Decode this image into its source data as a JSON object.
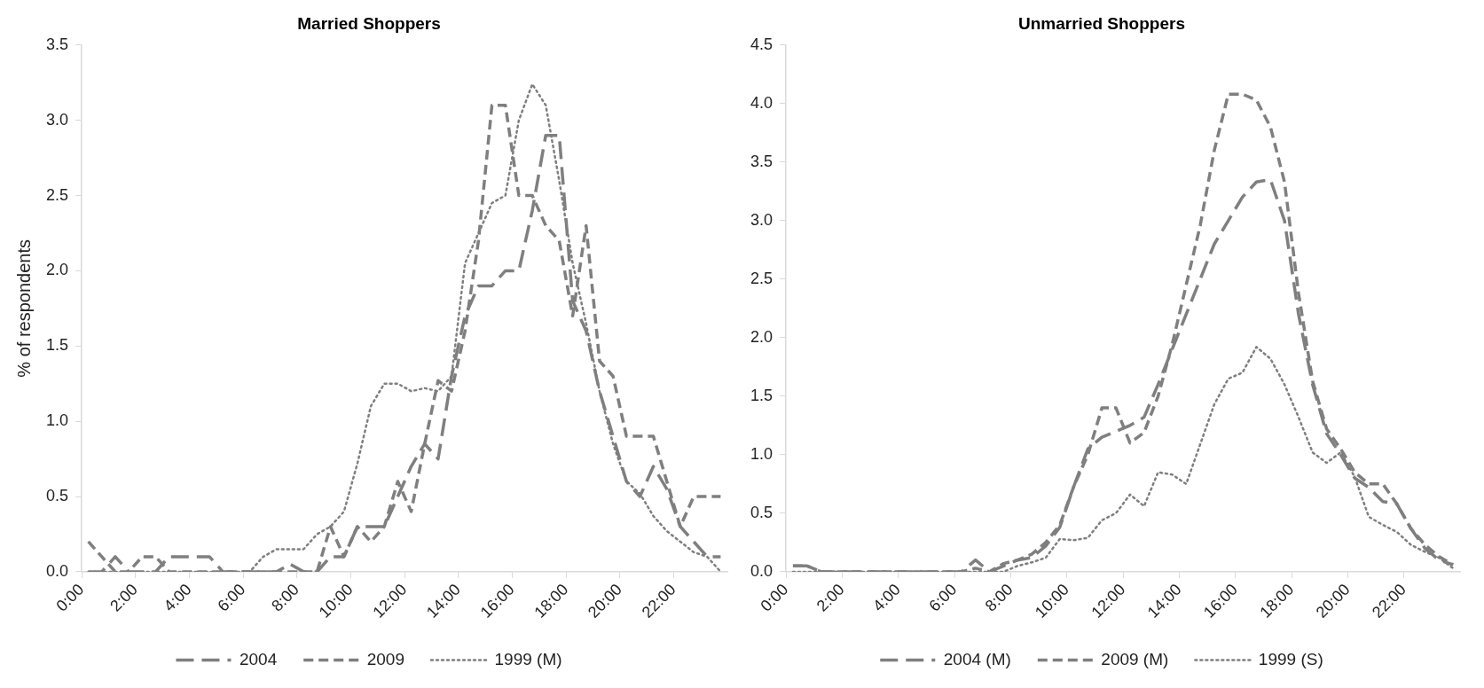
{
  "chart_data": [
    {
      "type": "line",
      "title": "Married Shoppers",
      "ylabel": "% of respondents",
      "x": [
        0.25,
        0.75,
        1.25,
        1.75,
        2.25,
        2.75,
        3.25,
        3.75,
        4.25,
        4.75,
        5.25,
        5.75,
        6.25,
        6.75,
        7.25,
        7.75,
        8.25,
        8.75,
        9.25,
        9.75,
        10.25,
        10.75,
        11.25,
        11.75,
        12.25,
        12.75,
        13.25,
        13.75,
        14.25,
        14.75,
        15.25,
        15.75,
        16.25,
        16.75,
        17.25,
        17.75,
        18.25,
        18.75,
        19.25,
        19.75,
        20.25,
        20.75,
        21.25,
        21.75,
        22.25,
        22.75,
        23.25,
        23.75
      ],
      "xlim": [
        0,
        24
      ],
      "xticks": [
        {
          "value": 0,
          "label": "0:00"
        },
        {
          "value": 2,
          "label": "2:00"
        },
        {
          "value": 4,
          "label": "4:00"
        },
        {
          "value": 6,
          "label": "6:00"
        },
        {
          "value": 8,
          "label": "8:00"
        },
        {
          "value": 10,
          "label": "10:00"
        },
        {
          "value": 12,
          "label": "12:00"
        },
        {
          "value": 14,
          "label": "14:00"
        },
        {
          "value": 16,
          "label": "16:00"
        },
        {
          "value": 18,
          "label": "18:00"
        },
        {
          "value": 20,
          "label": "20:00"
        },
        {
          "value": 22,
          "label": "22:00"
        }
      ],
      "ylim": [
        0,
        3.5
      ],
      "yticks": [
        {
          "value": 0,
          "label": "0.0"
        },
        0.5,
        {
          "value": 1,
          "label": "1.0"
        },
        1.5,
        {
          "value": 2,
          "label": "2.0"
        },
        2.5,
        {
          "value": 3,
          "label": "3.0"
        },
        3.5
      ],
      "legend": "bottom",
      "marker": "none",
      "series": [
        {
          "name": "2004",
          "color": "#7f7f7f",
          "line_style": "dashed",
          "values": [
            0,
            0,
            0.1,
            0,
            0,
            0,
            0.1,
            0.1,
            0.1,
            0.1,
            0,
            0,
            0,
            0,
            0,
            0.05,
            0,
            0,
            0.1,
            0.1,
            0.3,
            0.3,
            0.3,
            0.5,
            0.7,
            0.85,
            0.75,
            1.3,
            1.7,
            1.9,
            1.9,
            2.0,
            2.0,
            2.4,
            2.9,
            2.9,
            1.8,
            1.6,
            1.2,
            0.9,
            0.6,
            0.5,
            0.7,
            0.55,
            0.3,
            0.2,
            0.1,
            0.1
          ]
        },
        {
          "name": "2009",
          "color": "#7f7f7f",
          "line_style": "dashed",
          "values": [
            0.2,
            0.1,
            0,
            0,
            0.1,
            0.1,
            0,
            0,
            0,
            0,
            0,
            0,
            0,
            0,
            0,
            0,
            0,
            0,
            0.3,
            0.1,
            0.3,
            0.2,
            0.3,
            0.6,
            0.4,
            0.85,
            1.27,
            1.2,
            1.6,
            2.2,
            3.1,
            3.1,
            2.5,
            2.5,
            2.3,
            2.2,
            1.7,
            2.3,
            1.4,
            1.3,
            0.9,
            0.9,
            0.9,
            0.6,
            0.3,
            0.5,
            0.5,
            0.5
          ]
        },
        {
          "name": "1999 (M)",
          "color": "#7f7f7f",
          "line_style": "dotted",
          "values": [
            0,
            0,
            0,
            0,
            0,
            0,
            0,
            0,
            0,
            0,
            0,
            0,
            0,
            0.1,
            0.15,
            0.15,
            0.15,
            0.25,
            0.3,
            0.4,
            0.72,
            1.1,
            1.25,
            1.25,
            1.2,
            1.22,
            1.2,
            1.3,
            2.05,
            2.25,
            2.45,
            2.5,
            3.0,
            3.24,
            3.1,
            2.6,
            2.05,
            1.65,
            1.2,
            0.85,
            0.6,
            0.52,
            0.37,
            0.27,
            0.2,
            0.13,
            0.1,
            0
          ]
        }
      ]
    },
    {
      "type": "line",
      "title": "Unmarried Shoppers",
      "x": [
        0.25,
        0.75,
        1.25,
        1.75,
        2.25,
        2.75,
        3.25,
        3.75,
        4.25,
        4.75,
        5.25,
        5.75,
        6.25,
        6.75,
        7.25,
        7.75,
        8.25,
        8.75,
        9.25,
        9.75,
        10.25,
        10.75,
        11.25,
        11.75,
        12.25,
        12.75,
        13.25,
        13.75,
        14.25,
        14.75,
        15.25,
        15.75,
        16.25,
        16.75,
        17.25,
        17.75,
        18.25,
        18.75,
        19.25,
        19.75,
        20.25,
        20.75,
        21.25,
        21.75,
        22.25,
        22.75,
        23.25,
        23.75
      ],
      "xlim": [
        0,
        24
      ],
      "xticks": [
        {
          "value": 0,
          "label": "0:00"
        },
        {
          "value": 2,
          "label": "2:00"
        },
        {
          "value": 4,
          "label": "4:00"
        },
        {
          "value": 6,
          "label": "6:00"
        },
        {
          "value": 8,
          "label": "8:00"
        },
        {
          "value": 10,
          "label": "10:00"
        },
        {
          "value": 12,
          "label": "12:00"
        },
        {
          "value": 14,
          "label": "14:00"
        },
        {
          "value": 16,
          "label": "16:00"
        },
        {
          "value": 18,
          "label": "18:00"
        },
        {
          "value": 20,
          "label": "20:00"
        },
        {
          "value": 22,
          "label": "22:00"
        }
      ],
      "ylim": [
        0,
        4.5
      ],
      "yticks": [
        {
          "value": 0,
          "label": "0.0"
        },
        0.5,
        {
          "value": 1,
          "label": "1.0"
        },
        1.5,
        {
          "value": 2,
          "label": "2.0"
        },
        2.5,
        {
          "value": 3,
          "label": "3.0"
        },
        3.5,
        {
          "value": 4,
          "label": "4.0"
        },
        4.5
      ],
      "legend": "bottom",
      "marker": "none",
      "series": [
        {
          "name": "2004 (M)",
          "color": "#7f7f7f",
          "line_style": "dashed",
          "values": [
            0.05,
            0.05,
            0,
            0,
            0,
            0,
            0,
            0,
            0,
            0,
            0,
            0,
            0,
            0.1,
            0,
            0.05,
            0.1,
            0.12,
            0.22,
            0.38,
            0.73,
            1.05,
            1.15,
            1.2,
            1.25,
            1.32,
            1.6,
            1.9,
            2.2,
            2.5,
            2.8,
            3.0,
            3.2,
            3.33,
            3.35,
            3.0,
            2.2,
            1.6,
            1.18,
            1.0,
            0.8,
            0.72,
            0.6,
            0.58,
            0.37,
            0.2,
            0.1,
            0.06
          ]
        },
        {
          "name": "2009 (M)",
          "color": "#7f7f7f",
          "line_style": "dashed",
          "values": [
            0.05,
            0.05,
            0,
            0,
            0,
            0,
            0,
            0,
            0,
            0,
            0,
            0,
            0,
            0.03,
            0,
            0.07,
            0.1,
            0.15,
            0.25,
            0.4,
            0.73,
            1.0,
            1.4,
            1.4,
            1.1,
            1.19,
            1.5,
            1.94,
            2.45,
            2.96,
            3.6,
            4.08,
            4.08,
            4.03,
            3.8,
            3.33,
            2.38,
            1.63,
            1.22,
            1.05,
            0.85,
            0.75,
            0.75,
            0.58,
            0.37,
            0.23,
            0.13,
            0.06
          ]
        },
        {
          "name": "1999 (S)",
          "color": "#7f7f7f",
          "line_style": "dotted",
          "values": [
            0,
            0,
            0,
            0,
            0,
            0,
            0,
            0,
            0,
            0,
            0,
            0,
            0,
            0,
            0,
            0,
            0.05,
            0.08,
            0.12,
            0.28,
            0.27,
            0.29,
            0.44,
            0.5,
            0.66,
            0.56,
            0.85,
            0.83,
            0.75,
            1.09,
            1.43,
            1.65,
            1.7,
            1.92,
            1.82,
            1.6,
            1.32,
            1.02,
            0.93,
            1.02,
            0.81,
            0.47,
            0.4,
            0.34,
            0.23,
            0.17,
            0.12,
            0.03
          ]
        }
      ]
    }
  ]
}
